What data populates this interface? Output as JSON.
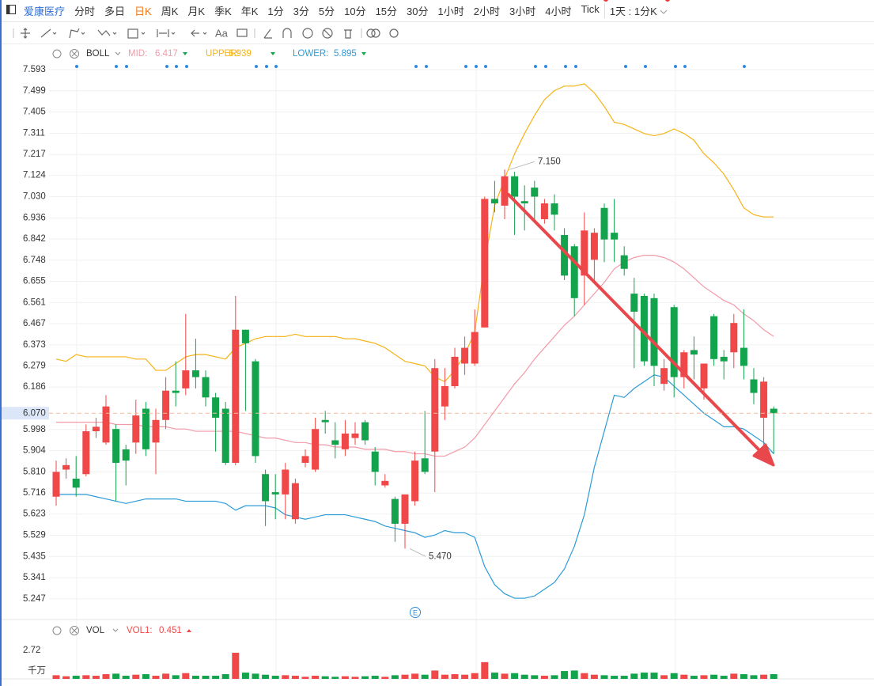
{
  "toolbar": {
    "stock": "爱康医疗",
    "periods": [
      "分时",
      "多日",
      "日K",
      "周K",
      "月K",
      "季K",
      "年K",
      "1分",
      "3分",
      "5分",
      "10分",
      "15分",
      "30分",
      "1小时",
      "2小时",
      "3小时",
      "4小时",
      "Tick"
    ],
    "selected": "日K",
    "interval": "1天 : 1分K",
    "text_tool": "Aa"
  },
  "event_marker": "E",
  "chart_data": [
    {
      "type": "candlestick",
      "indicator": "BOLL",
      "up_color": "#f04848",
      "down_color": "#13a34c",
      "open": [
        5.7,
        5.82,
        5.78,
        5.8,
        5.99,
        5.94,
        6.0,
        5.91,
        5.94,
        6.09,
        5.94,
        6.04,
        6.17,
        6.18,
        6.26,
        6.23,
        6.14,
        6.09,
        5.85,
        6.44,
        6.3,
        5.8,
        5.72,
        5.71,
        5.6,
        5.85,
        5.82,
        6.04,
        5.95,
        5.91,
        5.96,
        6.03,
        5.9,
        5.75,
        5.69,
        5.58,
        5.68,
        5.87,
        5.9,
        6.1,
        6.19,
        6.29,
        6.29,
        6.45,
        7.02,
        6.99,
        7.12,
        7.01,
        7.07,
        6.93,
        7.0,
        6.86,
        6.81,
        6.68,
        6.75,
        6.98,
        6.87,
        6.77,
        6.6,
        6.59,
        6.58,
        6.2,
        6.54,
        6.23,
        6.35,
        6.18,
        6.5,
        6.32,
        6.34,
        6.36,
        6.22,
        6.05,
        6.09
      ],
      "high": [
        5.86,
        5.87,
        5.88,
        6.02,
        6.05,
        6.15,
        6.02,
        5.93,
        6.13,
        6.12,
        6.09,
        6.23,
        6.3,
        6.51,
        6.4,
        6.26,
        6.16,
        6.12,
        6.59,
        6.44,
        6.31,
        5.82,
        5.8,
        5.85,
        5.78,
        5.91,
        6.05,
        6.08,
        6.03,
        6.04,
        6.03,
        6.04,
        5.92,
        5.8,
        5.7,
        5.71,
        5.9,
        6.08,
        6.31,
        6.27,
        6.36,
        6.41,
        6.53,
        7.03,
        7.1,
        7.15,
        7.14,
        7.08,
        7.1,
        7.02,
        7.04,
        6.89,
        6.82,
        6.96,
        6.89,
        7.0,
        7.02,
        6.81,
        6.67,
        6.6,
        6.6,
        6.31,
        6.55,
        6.35,
        6.41,
        6.29,
        6.51,
        6.35,
        6.51,
        6.53,
        6.27,
        6.23,
        6.1
      ],
      "low": [
        5.66,
        5.78,
        5.7,
        5.79,
        5.96,
        5.93,
        5.68,
        5.75,
        5.89,
        5.88,
        5.8,
        6.0,
        6.1,
        6.15,
        6.18,
        6.1,
        5.9,
        5.84,
        5.84,
        6.08,
        5.85,
        5.57,
        5.6,
        5.6,
        5.58,
        5.83,
        5.81,
        5.98,
        5.87,
        5.88,
        5.93,
        5.93,
        5.75,
        5.74,
        5.5,
        5.47,
        5.66,
        5.8,
        5.72,
        6.04,
        6.18,
        6.24,
        6.28,
        6.45,
        6.96,
        6.93,
        6.86,
        6.88,
        6.92,
        6.91,
        6.88,
        6.66,
        6.5,
        6.55,
        6.65,
        6.74,
        6.74,
        6.68,
        6.27,
        6.28,
        6.19,
        6.17,
        6.14,
        6.18,
        6.22,
        6.13,
        6.28,
        6.22,
        6.27,
        6.22,
        6.11,
        5.92,
        5.89
      ],
      "close": [
        5.81,
        5.84,
        5.74,
        5.99,
        6.01,
        6.1,
        5.85,
        5.86,
        6.06,
        5.91,
        6.04,
        6.17,
        6.16,
        6.26,
        6.23,
        6.14,
        6.05,
        5.85,
        6.44,
        6.38,
        5.88,
        5.68,
        5.71,
        5.82,
        5.76,
        5.88,
        6.0,
        6.03,
        5.93,
        5.98,
        5.98,
        5.95,
        5.81,
        5.77,
        5.58,
        5.71,
        5.86,
        5.81,
        6.27,
        6.19,
        6.32,
        6.36,
        6.43,
        7.02,
        7.0,
        7.12,
        7.03,
        7.0,
        7.03,
        7.0,
        6.95,
        6.68,
        6.58,
        6.88,
        6.87,
        6.84,
        6.84,
        6.71,
        6.52,
        6.3,
        6.28,
        6.27,
        6.23,
        6.34,
        6.33,
        6.29,
        6.31,
        6.3,
        6.47,
        6.28,
        6.16,
        6.21,
        6.07
      ],
      "series": [
        {
          "name": "MID:",
          "current": 6.417,
          "color": "#f29aa8",
          "values": [
            6.03,
            6.03,
            6.03,
            6.03,
            6.03,
            6.03,
            6.02,
            6.02,
            6.02,
            6.01,
            6.01,
            6.01,
            6.0,
            6.0,
            5.99,
            5.99,
            5.99,
            5.99,
            5.99,
            5.98,
            5.97,
            5.96,
            5.96,
            5.95,
            5.94,
            5.94,
            5.93,
            5.93,
            5.92,
            5.92,
            5.92,
            5.91,
            5.91,
            5.91,
            5.9,
            5.9,
            5.89,
            5.89,
            5.88,
            5.88,
            5.9,
            5.92,
            5.96,
            6.02,
            6.08,
            6.14,
            6.2,
            6.25,
            6.31,
            6.36,
            6.41,
            6.46,
            6.5,
            6.55,
            6.6,
            6.65,
            6.71,
            6.74,
            6.76,
            6.77,
            6.77,
            6.76,
            6.74,
            6.71,
            6.67,
            6.63,
            6.6,
            6.57,
            6.55,
            6.51,
            6.48,
            6.44,
            6.41
          ]
        },
        {
          "name": "UPPER:",
          "current": 6.939,
          "color": "#f5b316",
          "values": [
            6.31,
            6.3,
            6.33,
            6.32,
            6.32,
            6.32,
            6.32,
            6.32,
            6.31,
            6.31,
            6.26,
            6.26,
            6.29,
            6.32,
            6.33,
            6.33,
            6.32,
            6.31,
            6.36,
            6.38,
            6.4,
            6.41,
            6.41,
            6.41,
            6.42,
            6.41,
            6.41,
            6.41,
            6.41,
            6.4,
            6.4,
            6.39,
            6.38,
            6.36,
            6.33,
            6.3,
            6.29,
            6.28,
            6.23,
            6.21,
            6.26,
            6.33,
            6.43,
            6.74,
            6.99,
            7.11,
            7.22,
            7.31,
            7.39,
            7.46,
            7.5,
            7.52,
            7.52,
            7.53,
            7.49,
            7.43,
            7.36,
            7.35,
            7.33,
            7.31,
            7.3,
            7.31,
            7.33,
            7.31,
            7.28,
            7.22,
            7.18,
            7.13,
            7.06,
            6.98,
            6.95,
            6.94,
            6.94
          ]
        },
        {
          "name": "LOWER:",
          "current": 5.895,
          "color": "#2b9bd8",
          "values": [
            5.71,
            5.71,
            5.71,
            5.71,
            5.7,
            5.69,
            5.68,
            5.67,
            5.68,
            5.69,
            5.69,
            5.69,
            5.69,
            5.68,
            5.68,
            5.68,
            5.68,
            5.67,
            5.64,
            5.66,
            5.66,
            5.66,
            5.65,
            5.62,
            5.61,
            5.6,
            5.61,
            5.62,
            5.62,
            5.62,
            5.61,
            5.6,
            5.59,
            5.57,
            5.56,
            5.55,
            5.54,
            5.52,
            5.53,
            5.55,
            5.54,
            5.54,
            5.52,
            5.39,
            5.31,
            5.27,
            5.25,
            5.25,
            5.26,
            5.29,
            5.32,
            5.38,
            5.48,
            5.62,
            5.83,
            5.99,
            6.15,
            6.14,
            6.18,
            6.21,
            6.24,
            6.23,
            6.19,
            6.15,
            6.11,
            6.07,
            6.04,
            6.01,
            6.01,
            6.0,
            5.97,
            5.94,
            5.89
          ]
        }
      ],
      "high_label": {
        "value": 7.15,
        "label": "7.150"
      },
      "low_label": {
        "value": 5.47,
        "label": "5.470"
      },
      "last_price": {
        "value": 6.07,
        "label": "6.070"
      },
      "ylim": [
        5.166,
        7.621
      ],
      "yticks": [
        7.593,
        7.499,
        7.405,
        {
          "value": 7.311,
          "label": "7.311"
        },
        7.217,
        7.124,
        {
          "value": 7.03,
          "label": "7.030"
        },
        6.936,
        6.842,
        6.748,
        6.655,
        6.561,
        6.467,
        6.373,
        6.279,
        6.186,
        5.998,
        5.904,
        {
          "value": 5.81,
          "label": "5.810"
        },
        5.716,
        5.623,
        5.529,
        5.435,
        5.341,
        5.247
      ],
      "grid": true
    },
    {
      "type": "bar",
      "indicator": "VOL",
      "ma_label": "VOL1:",
      "ma_value": 0.451,
      "ma_color": "#f04848",
      "values": [
        0.35,
        0.25,
        0.3,
        0.35,
        0.3,
        0.45,
        0.5,
        0.3,
        0.4,
        0.45,
        0.3,
        0.5,
        0.35,
        0.55,
        0.3,
        0.3,
        0.3,
        0.45,
        2.5,
        0.6,
        0.5,
        0.4,
        0.3,
        0.35,
        0.3,
        0.2,
        0.3,
        0.25,
        0.2,
        0.25,
        0.2,
        0.25,
        0.3,
        0.2,
        0.35,
        0.4,
        0.5,
        0.4,
        0.8,
        0.4,
        0.45,
        0.4,
        0.55,
        1.6,
        0.6,
        0.5,
        0.55,
        0.4,
        0.35,
        0.3,
        0.35,
        0.75,
        0.8,
        0.55,
        0.4,
        0.35,
        0.3,
        0.3,
        0.5,
        0.6,
        0.6,
        0.35,
        0.55,
        0.4,
        0.3,
        0.35,
        0.4,
        0.3,
        0.5,
        0.45,
        0.35,
        0.4,
        0.45
      ],
      "ylim": [
        0,
        3.48
      ],
      "yticks": [
        2.72
      ],
      "unit_label": "千万"
    }
  ]
}
